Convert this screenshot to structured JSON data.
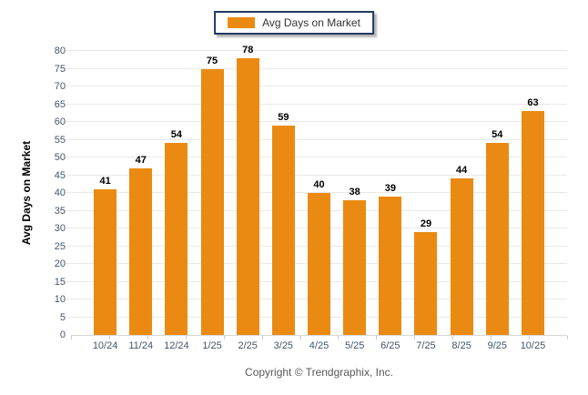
{
  "chart_data": {
    "type": "bar",
    "title": "Avg Days on Market",
    "legend": "Avg Days on Market",
    "legend_position": "top-center",
    "ylabel": "Avg Days on Market",
    "xlabel": "",
    "categories": [
      "10/24",
      "11/24",
      "12/24",
      "1/25",
      "2/25",
      "3/25",
      "4/25",
      "5/25",
      "6/25",
      "7/25",
      "8/25",
      "9/25",
      "10/25"
    ],
    "values": [
      41,
      47,
      54,
      75,
      78,
      59,
      40,
      38,
      39,
      29,
      44,
      54,
      63
    ],
    "ylim": [
      0,
      80
    ],
    "ytick_step": 5,
    "grid": "horizontal"
  },
  "footer": {
    "copyright": "Copyright © Trendgraphix, Inc."
  },
  "colors": {
    "bar": "#EB8A12",
    "legend_border": "#1F3864",
    "gridline": "#E9E9E9",
    "baseline": "#D6D6D6",
    "axis_label": "#44546A",
    "value_label": "#000000",
    "footer_text": "#595959"
  }
}
